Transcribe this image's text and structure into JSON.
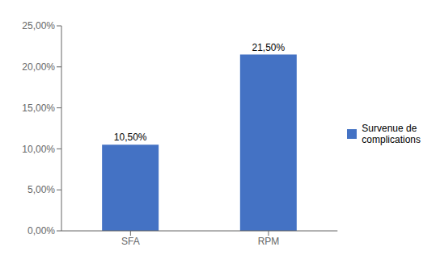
{
  "chart_data": {
    "type": "bar",
    "categories": [
      "SFA",
      "RPM"
    ],
    "series": [
      {
        "name": "Survenue de\ncomplications",
        "color": "#4472C4",
        "values": [
          10.5,
          21.5
        ],
        "value_labels": [
          "10,50%",
          "21,50%"
        ]
      }
    ],
    "ylim": [
      0,
      25
    ],
    "yticks": [
      {
        "value": 0,
        "label": "0,00%"
      },
      {
        "value": 5,
        "label": "5,00%"
      },
      {
        "value": 10,
        "label": "10,00%"
      },
      {
        "value": 15,
        "label": "15,00%"
      },
      {
        "value": 20,
        "label": "20,00%"
      },
      {
        "value": 25,
        "label": "25,00%"
      }
    ],
    "grid": false,
    "legend": "right",
    "data_labels": true
  }
}
